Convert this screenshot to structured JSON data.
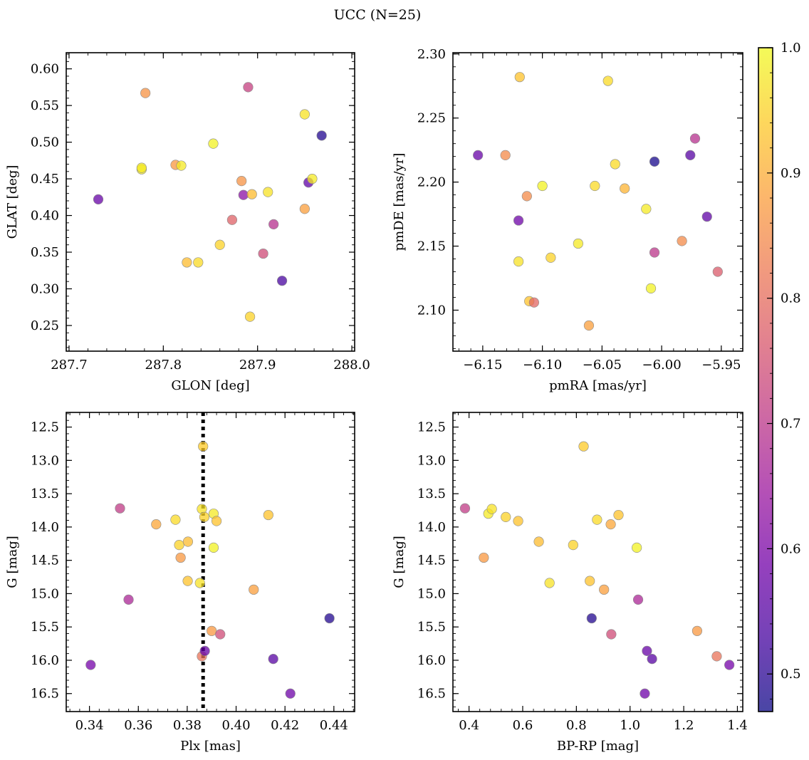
{
  "figure": {
    "title": "UCC (N=25)"
  },
  "chart_data": [
    {
      "type": "scatter",
      "title": "",
      "xlabel": "GLON [deg]",
      "ylabel": "GLAT [deg]",
      "xlim": [
        287.697,
        288.003
      ],
      "ylim": [
        0.215,
        0.622
      ],
      "xticks": [
        "287.7",
        "287.8",
        "287.9",
        "288.0"
      ],
      "yticks": [
        "0.25",
        "0.30",
        "0.35",
        "0.40",
        "0.45",
        "0.50",
        "0.55",
        "0.60"
      ],
      "grid": false,
      "points": [
        {
          "x": 287.731,
          "y": 0.422,
          "c": 0.57
        },
        {
          "x": 287.777,
          "y": 0.463,
          "c": 0.98
        },
        {
          "x": 287.777,
          "y": 0.465,
          "c": 0.98
        },
        {
          "x": 287.781,
          "y": 0.567,
          "c": 0.86
        },
        {
          "x": 287.813,
          "y": 0.469,
          "c": 0.87
        },
        {
          "x": 287.819,
          "y": 0.468,
          "c": 0.98
        },
        {
          "x": 287.825,
          "y": 0.336,
          "c": 0.92
        },
        {
          "x": 287.837,
          "y": 0.336,
          "c": 0.96
        },
        {
          "x": 287.853,
          "y": 0.498,
          "c": 0.99
        },
        {
          "x": 287.86,
          "y": 0.36,
          "c": 0.95
        },
        {
          "x": 287.873,
          "y": 0.394,
          "c": 0.78
        },
        {
          "x": 287.883,
          "y": 0.447,
          "c": 0.86
        },
        {
          "x": 287.885,
          "y": 0.428,
          "c": 0.62
        },
        {
          "x": 287.89,
          "y": 0.575,
          "c": 0.72
        },
        {
          "x": 287.892,
          "y": 0.262,
          "c": 0.95
        },
        {
          "x": 287.894,
          "y": 0.429,
          "c": 0.92
        },
        {
          "x": 287.906,
          "y": 0.348,
          "c": 0.74
        },
        {
          "x": 287.911,
          "y": 0.432,
          "c": 0.97
        },
        {
          "x": 287.917,
          "y": 0.388,
          "c": 0.69
        },
        {
          "x": 287.926,
          "y": 0.311,
          "c": 0.53
        },
        {
          "x": 287.95,
          "y": 0.538,
          "c": 0.97
        },
        {
          "x": 287.95,
          "y": 0.409,
          "c": 0.88
        },
        {
          "x": 287.954,
          "y": 0.445,
          "c": 0.56
        },
        {
          "x": 287.958,
          "y": 0.45,
          "c": 0.98
        },
        {
          "x": 287.968,
          "y": 0.509,
          "c": 0.49
        }
      ]
    },
    {
      "type": "scatter",
      "title": "",
      "xlabel": "pmRA [mas/yr]",
      "ylabel": "pmDE [mas/yr]",
      "xlim": [
        -6.175,
        -5.932
      ],
      "ylim": [
        2.068,
        2.301
      ],
      "xticks": [
        "−6.15",
        "−6.10",
        "−6.05",
        "−6.00",
        "−5.95"
      ],
      "yticks": [
        "2.10",
        "2.15",
        "2.20",
        "2.25",
        "2.30"
      ],
      "grid": false,
      "points": [
        {
          "x": -6.154,
          "y": 2.221,
          "c": 0.57
        },
        {
          "x": -6.131,
          "y": 2.221,
          "c": 0.85
        },
        {
          "x": -6.12,
          "y": 2.17,
          "c": 0.58
        },
        {
          "x": -6.12,
          "y": 2.138,
          "c": 0.97
        },
        {
          "x": -6.119,
          "y": 2.282,
          "c": 0.93
        },
        {
          "x": -6.113,
          "y": 2.189,
          "c": 0.85
        },
        {
          "x": -6.111,
          "y": 2.107,
          "c": 0.93
        },
        {
          "x": -6.107,
          "y": 2.106,
          "c": 0.79
        },
        {
          "x": -6.1,
          "y": 2.197,
          "c": 0.99
        },
        {
          "x": -6.093,
          "y": 2.141,
          "c": 0.95
        },
        {
          "x": -6.07,
          "y": 2.152,
          "c": 0.98
        },
        {
          "x": -6.061,
          "y": 2.088,
          "c": 0.88
        },
        {
          "x": -6.056,
          "y": 2.197,
          "c": 0.96
        },
        {
          "x": -6.045,
          "y": 2.279,
          "c": 0.96
        },
        {
          "x": -6.039,
          "y": 2.214,
          "c": 0.96
        },
        {
          "x": -6.031,
          "y": 2.195,
          "c": 0.91
        },
        {
          "x": -6.013,
          "y": 2.179,
          "c": 0.98
        },
        {
          "x": -6.009,
          "y": 2.117,
          "c": 0.99
        },
        {
          "x": -6.006,
          "y": 2.145,
          "c": 0.7
        },
        {
          "x": -6.006,
          "y": 2.216,
          "c": 0.48
        },
        {
          "x": -5.983,
          "y": 2.154,
          "c": 0.85
        },
        {
          "x": -5.976,
          "y": 2.221,
          "c": 0.55
        },
        {
          "x": -5.972,
          "y": 2.234,
          "c": 0.69
        },
        {
          "x": -5.962,
          "y": 2.173,
          "c": 0.56
        },
        {
          "x": -5.953,
          "y": 2.13,
          "c": 0.77
        }
      ]
    },
    {
      "type": "scatter",
      "title": "",
      "xlabel": "Plx [mas]",
      "ylabel": "G [mag]",
      "xlim": [
        0.3305,
        0.4485
      ],
      "ylim": [
        16.77,
        12.28
      ],
      "y_inverted": true,
      "xticks": [
        "0.34",
        "0.36",
        "0.38",
        "0.40",
        "0.42",
        "0.44"
      ],
      "yticks": [
        "12.5",
        "13.0",
        "13.5",
        "14.0",
        "14.5",
        "15.0",
        "15.5",
        "16.0",
        "16.5"
      ],
      "grid": false,
      "reference_line": {
        "axis": "x",
        "value": 0.3865,
        "style": "dotted",
        "color": "#000000"
      },
      "points": [
        {
          "x": 0.3405,
          "y": 16.07,
          "c": 0.59
        },
        {
          "x": 0.3525,
          "y": 13.72,
          "c": 0.71
        },
        {
          "x": 0.356,
          "y": 15.09,
          "c": 0.67
        },
        {
          "x": 0.3673,
          "y": 13.96,
          "c": 0.89
        },
        {
          "x": 0.3752,
          "y": 13.89,
          "c": 0.96
        },
        {
          "x": 0.3767,
          "y": 14.27,
          "c": 0.95
        },
        {
          "x": 0.3773,
          "y": 14.46,
          "c": 0.87
        },
        {
          "x": 0.3803,
          "y": 14.22,
          "c": 0.92
        },
        {
          "x": 0.3802,
          "y": 14.81,
          "c": 0.93
        },
        {
          "x": 0.3852,
          "y": 14.84,
          "c": 0.97
        },
        {
          "x": 0.386,
          "y": 13.73,
          "c": 0.97
        },
        {
          "x": 0.3865,
          "y": 12.79,
          "c": 0.94
        },
        {
          "x": 0.387,
          "y": 13.85,
          "c": 0.95
        },
        {
          "x": 0.386,
          "y": 15.94,
          "c": 0.81
        },
        {
          "x": 0.3872,
          "y": 15.86,
          "c": 0.57
        },
        {
          "x": 0.39,
          "y": 15.56,
          "c": 0.87
        },
        {
          "x": 0.3908,
          "y": 13.8,
          "c": 0.98
        },
        {
          "x": 0.3908,
          "y": 14.31,
          "c": 0.99
        },
        {
          "x": 0.392,
          "y": 13.91,
          "c": 0.93
        },
        {
          "x": 0.3935,
          "y": 15.61,
          "c": 0.74
        },
        {
          "x": 0.4072,
          "y": 14.94,
          "c": 0.88
        },
        {
          "x": 0.4132,
          "y": 13.82,
          "c": 0.93
        },
        {
          "x": 0.4152,
          "y": 15.98,
          "c": 0.55
        },
        {
          "x": 0.4222,
          "y": 16.5,
          "c": 0.58
        },
        {
          "x": 0.4382,
          "y": 15.37,
          "c": 0.49
        }
      ]
    },
    {
      "type": "scatter",
      "title": "",
      "xlabel": "BP-RP [mag]",
      "ylabel": "G [mag]",
      "xlim": [
        0.34,
        1.42
      ],
      "ylim": [
        16.77,
        12.28
      ],
      "y_inverted": true,
      "xticks": [
        "0.4",
        "0.6",
        "0.8",
        "1.0",
        "1.2",
        "1.4"
      ],
      "yticks": [
        "12.5",
        "13.0",
        "13.5",
        "14.0",
        "14.5",
        "15.0",
        "15.5",
        "16.0",
        "16.5"
      ],
      "grid": false,
      "points": [
        {
          "x": 0.385,
          "y": 13.72,
          "c": 0.71
        },
        {
          "x": 0.455,
          "y": 14.46,
          "c": 0.87
        },
        {
          "x": 0.472,
          "y": 13.8,
          "c": 0.98
        },
        {
          "x": 0.485,
          "y": 13.73,
          "c": 0.97
        },
        {
          "x": 0.537,
          "y": 13.85,
          "c": 0.95
        },
        {
          "x": 0.583,
          "y": 13.91,
          "c": 0.93
        },
        {
          "x": 0.66,
          "y": 14.22,
          "c": 0.92
        },
        {
          "x": 0.7,
          "y": 14.84,
          "c": 0.97
        },
        {
          "x": 0.788,
          "y": 14.27,
          "c": 0.95
        },
        {
          "x": 0.827,
          "y": 12.79,
          "c": 0.94
        },
        {
          "x": 0.85,
          "y": 14.81,
          "c": 0.93
        },
        {
          "x": 0.857,
          "y": 15.37,
          "c": 0.49
        },
        {
          "x": 0.877,
          "y": 13.89,
          "c": 0.96
        },
        {
          "x": 0.903,
          "y": 14.94,
          "c": 0.88
        },
        {
          "x": 0.928,
          "y": 13.96,
          "c": 0.89
        },
        {
          "x": 0.93,
          "y": 15.61,
          "c": 0.74
        },
        {
          "x": 0.957,
          "y": 13.82,
          "c": 0.93
        },
        {
          "x": 1.025,
          "y": 14.31,
          "c": 0.99
        },
        {
          "x": 1.03,
          "y": 15.09,
          "c": 0.67
        },
        {
          "x": 1.055,
          "y": 16.5,
          "c": 0.58
        },
        {
          "x": 1.063,
          "y": 15.86,
          "c": 0.57
        },
        {
          "x": 1.082,
          "y": 15.98,
          "c": 0.55
        },
        {
          "x": 1.25,
          "y": 15.56,
          "c": 0.87
        },
        {
          "x": 1.323,
          "y": 15.94,
          "c": 0.81
        },
        {
          "x": 1.37,
          "y": 16.07,
          "c": 0.59
        }
      ]
    }
  ],
  "colorbar": {
    "colormap": "plasma",
    "range": [
      0.47,
      1.0
    ],
    "ticks": [
      "0.5",
      "0.6",
      "0.7",
      "0.8",
      "0.9",
      "1.0"
    ],
    "colors": [
      "#0d0887",
      "#46039f",
      "#7201a8",
      "#9c179e",
      "#bd3786",
      "#d8576b",
      "#ed7953",
      "#fb9f3a",
      "#fdca26",
      "#f0f921"
    ],
    "alpha": 0.75
  }
}
